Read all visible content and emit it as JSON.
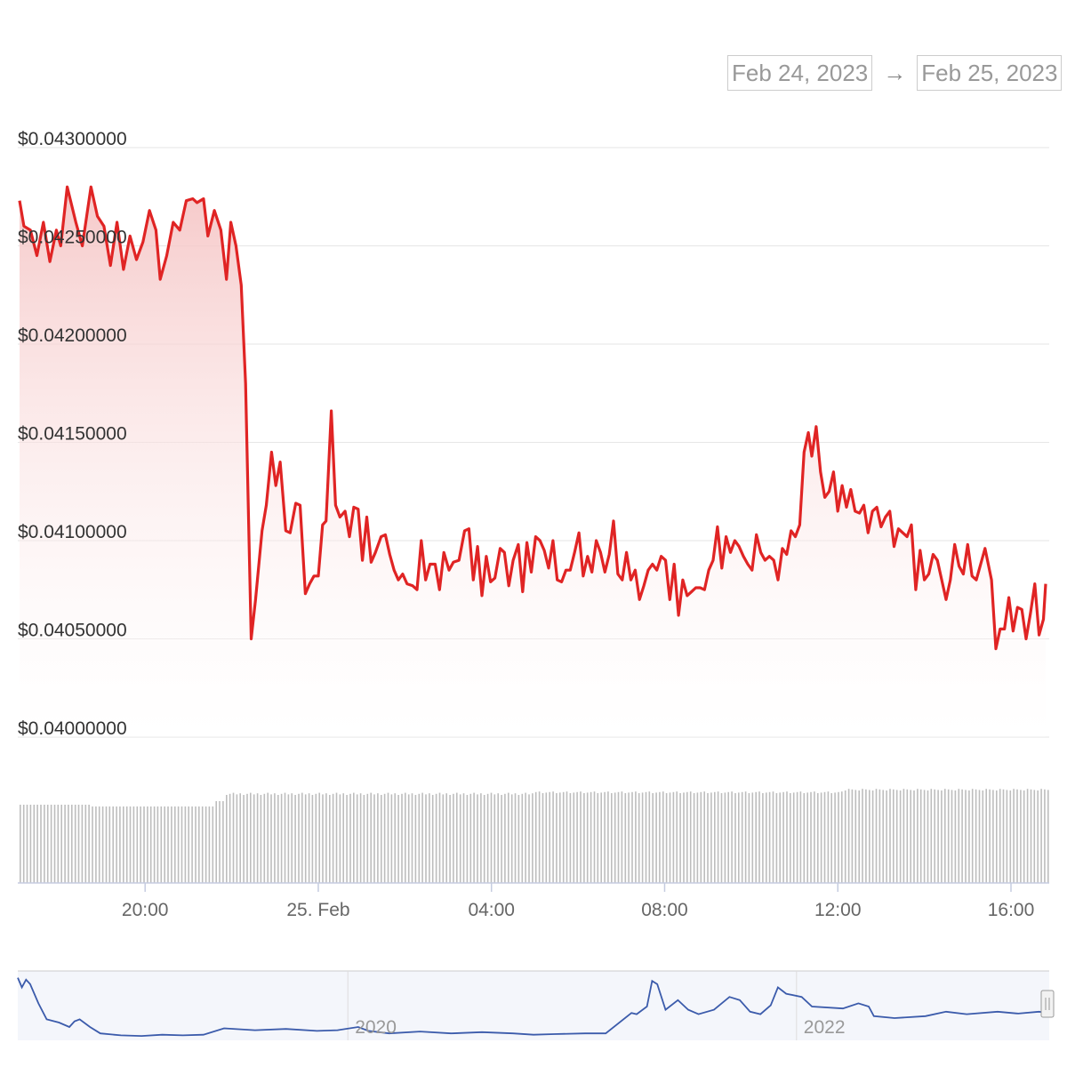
{
  "date_range": {
    "from": "Feb 24, 2023",
    "arrow": "→",
    "to": "Feb 25, 2023"
  },
  "colors": {
    "price_line": "#e02424",
    "area_top": "#f5c6c6",
    "volume": "#bdbdbd",
    "navigator_line": "#3b5bab",
    "grid": "#e6e6e6"
  },
  "chart_data": {
    "type": "line",
    "x_unit": "hours since 16:00 on 24 Feb 2023",
    "ylim": [
      0.04,
      0.043
    ],
    "y_ticks": [
      {
        "value": 0.043,
        "label": "$0.04300000"
      },
      {
        "value": 0.0425,
        "label": "$0.04250000"
      },
      {
        "value": 0.042,
        "label": "$0.04200000"
      },
      {
        "value": 0.0415,
        "label": "$0.04150000"
      },
      {
        "value": 0.041,
        "label": "$0.04100000"
      },
      {
        "value": 0.0405,
        "label": "$0.04050000"
      },
      {
        "value": 0.04,
        "label": "$0.04000000"
      }
    ],
    "x_ticks": [
      {
        "t": 4,
        "label": "20:00"
      },
      {
        "t": 8,
        "label": "25. Feb"
      },
      {
        "t": 12,
        "label": "04:00"
      },
      {
        "t": 16,
        "label": "08:00"
      },
      {
        "t": 20,
        "label": "12:00"
      },
      {
        "t": 24,
        "label": "16:00"
      }
    ],
    "xlim": [
      1.1,
      24.8
    ],
    "price_series": [
      [
        1.1,
        0.04273
      ],
      [
        1.2,
        0.0426
      ],
      [
        1.35,
        0.04258
      ],
      [
        1.5,
        0.04245
      ],
      [
        1.65,
        0.04262
      ],
      [
        1.8,
        0.04242
      ],
      [
        1.95,
        0.04258
      ],
      [
        2.05,
        0.0425
      ],
      [
        2.2,
        0.0428
      ],
      [
        2.4,
        0.04262
      ],
      [
        2.55,
        0.0425
      ],
      [
        2.75,
        0.0428
      ],
      [
        2.9,
        0.04265
      ],
      [
        3.05,
        0.0426
      ],
      [
        3.2,
        0.0424
      ],
      [
        3.35,
        0.04262
      ],
      [
        3.5,
        0.04238
      ],
      [
        3.65,
        0.04255
      ],
      [
        3.8,
        0.04243
      ],
      [
        3.95,
        0.04252
      ],
      [
        4.1,
        0.04268
      ],
      [
        4.25,
        0.04258
      ],
      [
        4.35,
        0.04233
      ],
      [
        4.5,
        0.04245
      ],
      [
        4.65,
        0.04262
      ],
      [
        4.8,
        0.04258
      ],
      [
        4.95,
        0.04273
      ],
      [
        5.1,
        0.04274
      ],
      [
        5.2,
        0.04272
      ],
      [
        5.35,
        0.04274
      ],
      [
        5.45,
        0.04255
      ],
      [
        5.6,
        0.04268
      ],
      [
        5.75,
        0.04258
      ],
      [
        5.88,
        0.04233
      ],
      [
        5.98,
        0.04262
      ],
      [
        6.1,
        0.0425
      ],
      [
        6.22,
        0.0423
      ],
      [
        6.32,
        0.0418
      ],
      [
        6.45,
        0.0405
      ],
      [
        6.55,
        0.0407
      ],
      [
        6.7,
        0.04105
      ],
      [
        6.8,
        0.04118
      ],
      [
        6.92,
        0.04145
      ],
      [
        7.02,
        0.04128
      ],
      [
        7.12,
        0.0414
      ],
      [
        7.25,
        0.04105
      ],
      [
        7.35,
        0.04104
      ],
      [
        7.48,
        0.04119
      ],
      [
        7.58,
        0.04118
      ],
      [
        7.7,
        0.04073
      ],
      [
        7.8,
        0.04078
      ],
      [
        7.9,
        0.04082
      ],
      [
        8.0,
        0.04082
      ],
      [
        8.1,
        0.04108
      ],
      [
        8.18,
        0.0411
      ],
      [
        8.3,
        0.04166
      ],
      [
        8.4,
        0.04118
      ],
      [
        8.5,
        0.04112
      ],
      [
        8.62,
        0.04115
      ],
      [
        8.72,
        0.04102
      ],
      [
        8.82,
        0.04117
      ],
      [
        8.92,
        0.04116
      ],
      [
        9.02,
        0.0409
      ],
      [
        9.12,
        0.04112
      ],
      [
        9.22,
        0.04089
      ],
      [
        9.32,
        0.04094
      ],
      [
        9.45,
        0.04102
      ],
      [
        9.55,
        0.04103
      ],
      [
        9.65,
        0.04093
      ],
      [
        9.75,
        0.04085
      ],
      [
        9.85,
        0.0408
      ],
      [
        9.95,
        0.04083
      ],
      [
        10.05,
        0.04078
      ],
      [
        10.18,
        0.04077
      ],
      [
        10.28,
        0.04075
      ],
      [
        10.38,
        0.041
      ],
      [
        10.48,
        0.0408
      ],
      [
        10.58,
        0.04088
      ],
      [
        10.7,
        0.04088
      ],
      [
        10.8,
        0.04075
      ],
      [
        10.9,
        0.04094
      ],
      [
        11.02,
        0.04085
      ],
      [
        11.12,
        0.04089
      ],
      [
        11.25,
        0.0409
      ],
      [
        11.38,
        0.04105
      ],
      [
        11.48,
        0.04106
      ],
      [
        11.58,
        0.0408
      ],
      [
        11.68,
        0.04097
      ],
      [
        11.78,
        0.04072
      ],
      [
        11.88,
        0.04092
      ],
      [
        11.98,
        0.04079
      ],
      [
        12.08,
        0.04081
      ],
      [
        12.2,
        0.04096
      ],
      [
        12.3,
        0.04094
      ],
      [
        12.4,
        0.04077
      ],
      [
        12.5,
        0.0409
      ],
      [
        12.62,
        0.04098
      ],
      [
        12.72,
        0.04074
      ],
      [
        12.82,
        0.04099
      ],
      [
        12.92,
        0.04084
      ],
      [
        13.02,
        0.04102
      ],
      [
        13.12,
        0.041
      ],
      [
        13.22,
        0.04095
      ],
      [
        13.32,
        0.04086
      ],
      [
        13.42,
        0.041
      ],
      [
        13.52,
        0.0408
      ],
      [
        13.62,
        0.04079
      ],
      [
        13.72,
        0.04085
      ],
      [
        13.82,
        0.04085
      ],
      [
        13.92,
        0.04094
      ],
      [
        14.02,
        0.04104
      ],
      [
        14.12,
        0.04082
      ],
      [
        14.22,
        0.04092
      ],
      [
        14.32,
        0.04084
      ],
      [
        14.42,
        0.041
      ],
      [
        14.52,
        0.04094
      ],
      [
        14.62,
        0.04084
      ],
      [
        14.72,
        0.04093
      ],
      [
        14.82,
        0.0411
      ],
      [
        14.92,
        0.04083
      ],
      [
        15.02,
        0.0408
      ],
      [
        15.12,
        0.04094
      ],
      [
        15.22,
        0.0408
      ],
      [
        15.32,
        0.04085
      ],
      [
        15.42,
        0.0407
      ],
      [
        15.52,
        0.04077
      ],
      [
        15.62,
        0.04085
      ],
      [
        15.72,
        0.04088
      ],
      [
        15.82,
        0.04085
      ],
      [
        15.92,
        0.04092
      ],
      [
        16.02,
        0.0409
      ],
      [
        16.12,
        0.0407
      ],
      [
        16.22,
        0.04088
      ],
      [
        16.32,
        0.04062
      ],
      [
        16.42,
        0.0408
      ],
      [
        16.52,
        0.04072
      ],
      [
        16.62,
        0.04074
      ],
      [
        16.72,
        0.04076
      ],
      [
        16.82,
        0.04076
      ],
      [
        16.92,
        0.04075
      ],
      [
        17.02,
        0.04085
      ],
      [
        17.12,
        0.0409
      ],
      [
        17.22,
        0.04107
      ],
      [
        17.32,
        0.04086
      ],
      [
        17.42,
        0.04102
      ],
      [
        17.52,
        0.04094
      ],
      [
        17.62,
        0.041
      ],
      [
        17.72,
        0.04097
      ],
      [
        17.82,
        0.04092
      ],
      [
        17.92,
        0.04088
      ],
      [
        18.02,
        0.04085
      ],
      [
        18.12,
        0.04103
      ],
      [
        18.22,
        0.04094
      ],
      [
        18.32,
        0.0409
      ],
      [
        18.42,
        0.04092
      ],
      [
        18.52,
        0.0409
      ],
      [
        18.62,
        0.0408
      ],
      [
        18.72,
        0.04096
      ],
      [
        18.82,
        0.04093
      ],
      [
        18.92,
        0.04105
      ],
      [
        19.02,
        0.04102
      ],
      [
        19.12,
        0.04108
      ],
      [
        19.22,
        0.04145
      ],
      [
        19.32,
        0.04155
      ],
      [
        19.4,
        0.04143
      ],
      [
        19.5,
        0.04158
      ],
      [
        19.6,
        0.04135
      ],
      [
        19.7,
        0.04122
      ],
      [
        19.8,
        0.04125
      ],
      [
        19.9,
        0.04135
      ],
      [
        20.0,
        0.04115
      ],
      [
        20.1,
        0.04128
      ],
      [
        20.2,
        0.04117
      ],
      [
        20.3,
        0.04126
      ],
      [
        20.4,
        0.04115
      ],
      [
        20.5,
        0.04114
      ],
      [
        20.6,
        0.04118
      ],
      [
        20.7,
        0.04104
      ],
      [
        20.8,
        0.04115
      ],
      [
        20.9,
        0.04117
      ],
      [
        21.0,
        0.04107
      ],
      [
        21.1,
        0.04112
      ],
      [
        21.2,
        0.04115
      ],
      [
        21.3,
        0.04097
      ],
      [
        21.4,
        0.04106
      ],
      [
        21.5,
        0.04104
      ],
      [
        21.6,
        0.04102
      ],
      [
        21.7,
        0.04108
      ],
      [
        21.8,
        0.04075
      ],
      [
        21.9,
        0.04095
      ],
      [
        22.0,
        0.0408
      ],
      [
        22.1,
        0.04083
      ],
      [
        22.2,
        0.04093
      ],
      [
        22.3,
        0.0409
      ],
      [
        22.4,
        0.0408
      ],
      [
        22.5,
        0.0407
      ],
      [
        22.6,
        0.0408
      ],
      [
        22.7,
        0.04098
      ],
      [
        22.8,
        0.04087
      ],
      [
        22.9,
        0.04083
      ],
      [
        23.0,
        0.04098
      ],
      [
        23.1,
        0.04082
      ],
      [
        23.2,
        0.0408
      ],
      [
        23.3,
        0.04088
      ],
      [
        23.4,
        0.04096
      ],
      [
        23.55,
        0.0408
      ],
      [
        23.65,
        0.04045
      ],
      [
        23.75,
        0.04055
      ],
      [
        23.85,
        0.04055
      ],
      [
        23.95,
        0.04071
      ],
      [
        24.05,
        0.04054
      ],
      [
        24.15,
        0.04066
      ],
      [
        24.25,
        0.04065
      ],
      [
        24.35,
        0.0405
      ],
      [
        24.45,
        0.04063
      ],
      [
        24.55,
        0.04078
      ],
      [
        24.65,
        0.04052
      ],
      [
        24.75,
        0.0406
      ],
      [
        24.8,
        0.04078
      ]
    ],
    "navigator": {
      "x_ticks": [
        {
          "position": 0.32,
          "label": "2020"
        },
        {
          "position": 0.755,
          "label": "2022"
        }
      ]
    }
  }
}
